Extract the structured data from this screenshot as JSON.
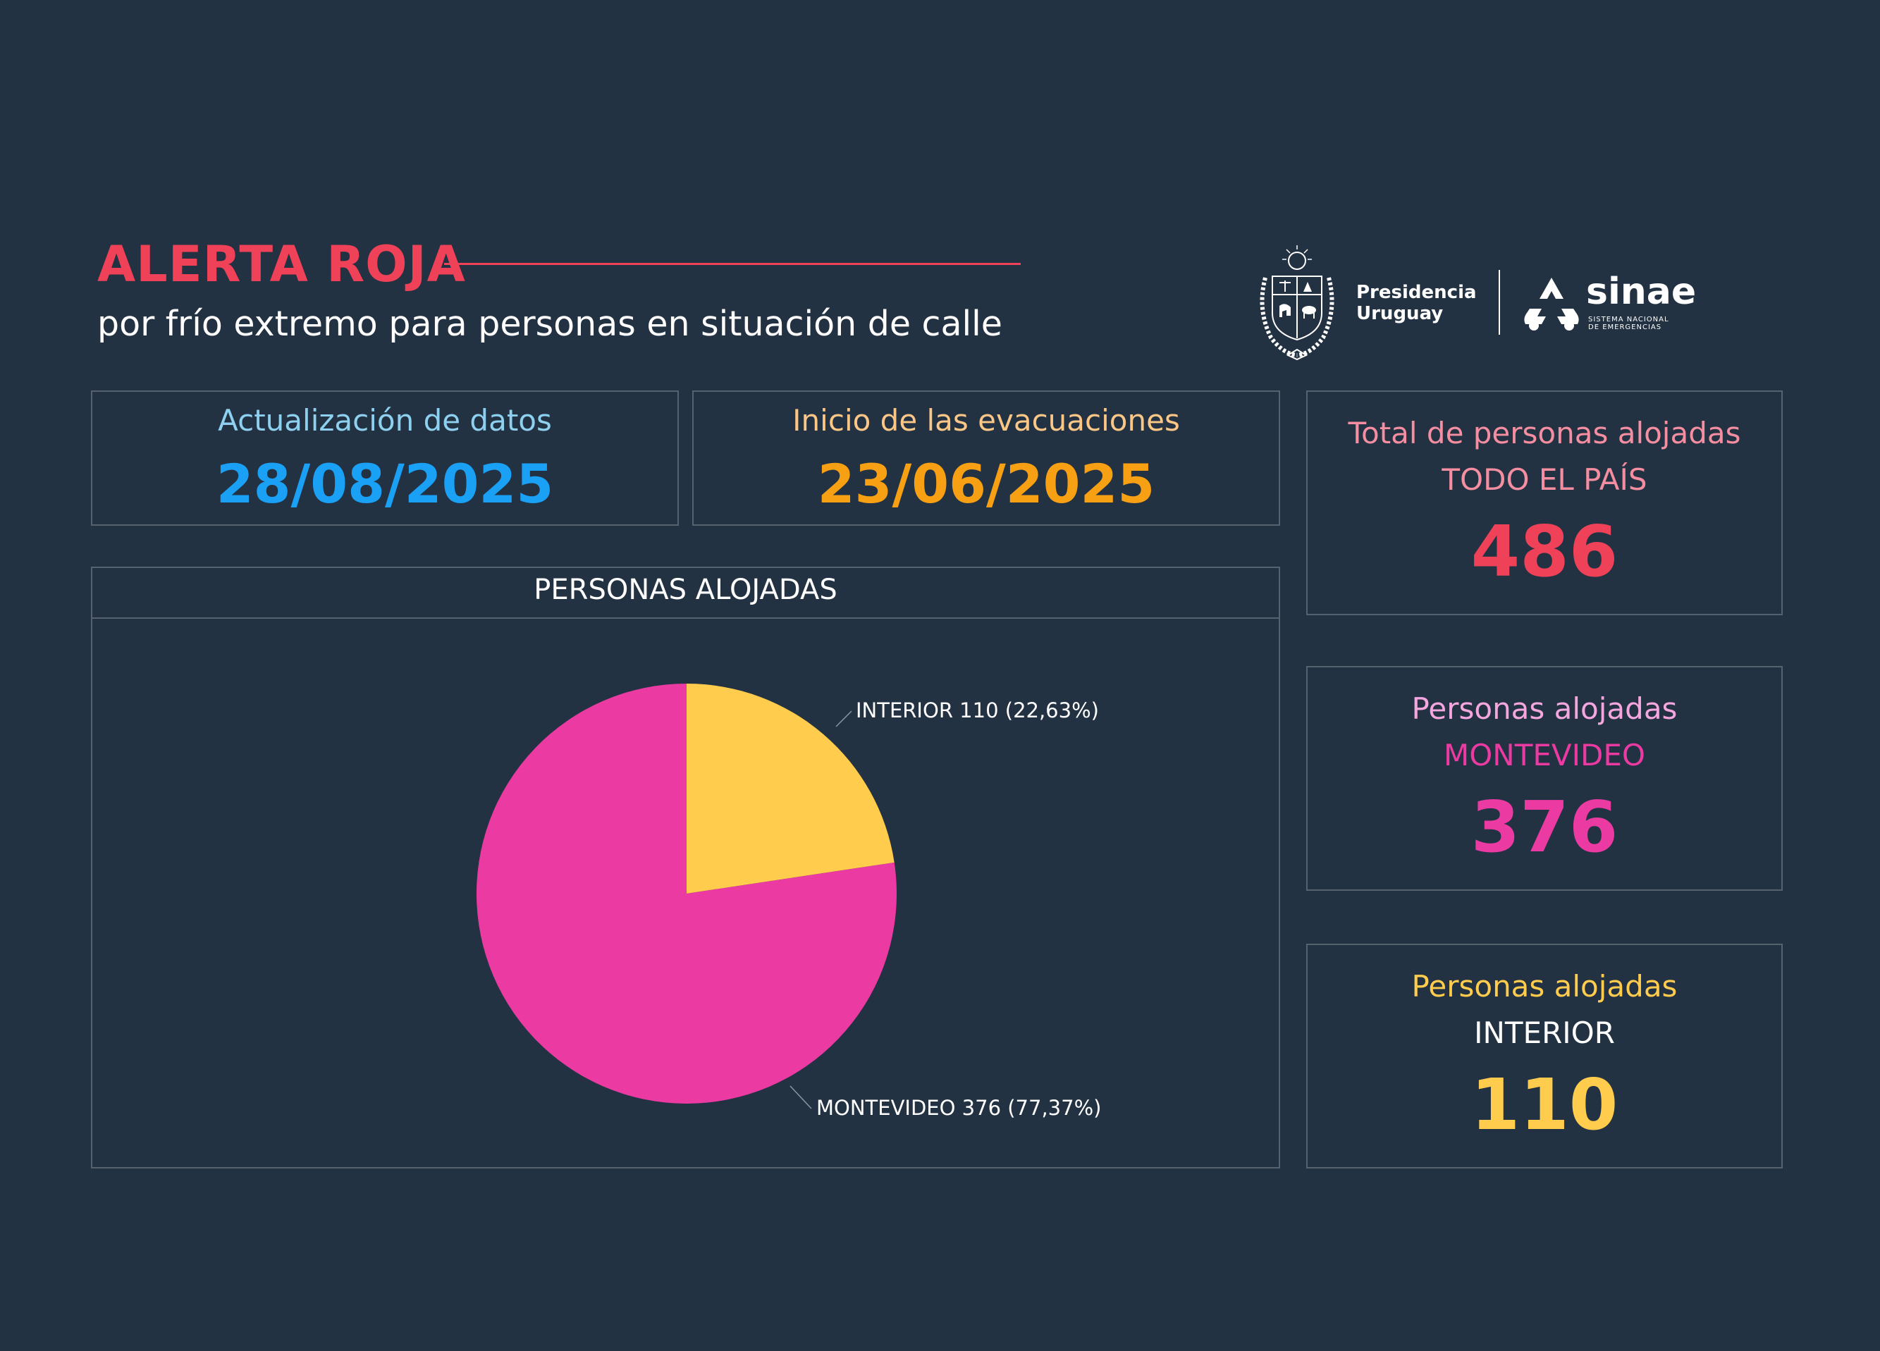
{
  "header": {
    "title": "ALERTA ROJA",
    "subtitle": "por frío extremo para personas en situación de calle"
  },
  "logos": {
    "presidencia_line1": "Presidencia",
    "presidencia_line2": "Uruguay",
    "sinae_word": "sinae",
    "sinae_sub_line1": "SISTEMA NACIONAL",
    "sinae_sub_line2": "DE EMERGENCIAS"
  },
  "update": {
    "label": "Actualización de datos",
    "value": "28/08/2025"
  },
  "start": {
    "label": "Inicio de las evacuaciones",
    "value": "23/06/2025"
  },
  "total": {
    "label": "Total de personas alojadas",
    "sub": "TODO EL PAÍS",
    "value": "486"
  },
  "montevideo": {
    "label": "Personas alojadas",
    "sub": "MONTEVIDEO",
    "value": "376"
  },
  "interior": {
    "label": "Personas alojadas",
    "sub": "INTERIOR",
    "value": "110"
  },
  "colors": {
    "background": "#233242",
    "title_red": "#ef4158",
    "update_blue": "#1aa0f5",
    "start_orange": "#f7a014",
    "montevideo_pink": "#ec3aa3",
    "interior_yellow": "#ffcc4d"
  },
  "chart_data": {
    "type": "pie",
    "title": "PERSONAS ALOJADAS",
    "slices": [
      {
        "name": "INTERIOR",
        "value": 110,
        "percent": 22.63,
        "label": "INTERIOR 110 (22,63%)",
        "color": "#ffcc4d"
      },
      {
        "name": "MONTEVIDEO",
        "value": 376,
        "percent": 77.37,
        "label": "MONTEVIDEO 376 (77,37%)",
        "color": "#ec3aa3"
      }
    ],
    "start_angle": "12 o'clock",
    "direction": "clockwise",
    "legend": "none"
  }
}
